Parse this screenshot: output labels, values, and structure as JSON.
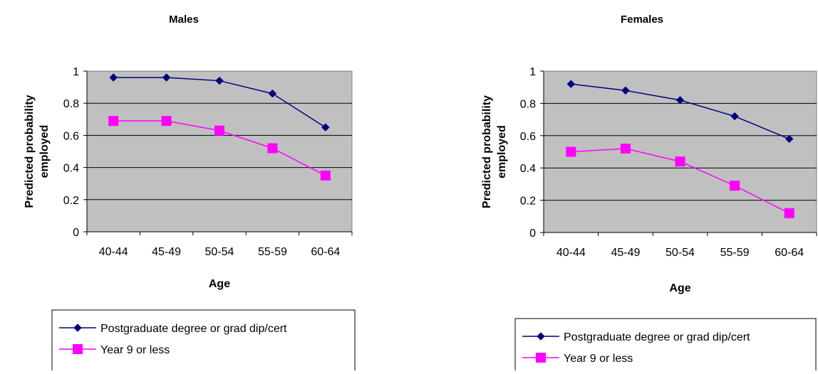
{
  "chart_data": [
    {
      "type": "line",
      "title": "Males",
      "xlabel": "Age",
      "ylabel": "Predicted probability employed",
      "categories": [
        "40-44",
        "45-49",
        "50-54",
        "55-59",
        "60-64"
      ],
      "ylim": [
        0,
        1
      ],
      "yticks": [
        "0",
        "0.2",
        "0.4",
        "0.6",
        "0.8",
        "1"
      ],
      "grid": true,
      "legend_position": "bottom",
      "plot_background": "#c0c0c0",
      "series": [
        {
          "name": "Postgraduate degree or grad dip/cert",
          "color": "#000080",
          "marker": "diamond",
          "values": [
            0.96,
            0.96,
            0.94,
            0.86,
            0.65
          ]
        },
        {
          "name": "Year 9 or less",
          "color": "#ff00ff",
          "marker": "square",
          "values": [
            0.69,
            0.69,
            0.63,
            0.52,
            0.35
          ]
        }
      ]
    },
    {
      "type": "line",
      "title": "Females",
      "xlabel": "Age",
      "ylabel": "Predicted probability employed",
      "categories": [
        "40-44",
        "45-49",
        "50-54",
        "55-59",
        "60-64"
      ],
      "ylim": [
        0,
        1
      ],
      "yticks": [
        "0",
        "0.2",
        "0.4",
        "0.6",
        "0.8",
        "1"
      ],
      "grid": true,
      "legend_position": "bottom",
      "plot_background": "#c0c0c0",
      "series": [
        {
          "name": "Postgraduate degree or grad dip/cert",
          "color": "#000080",
          "marker": "diamond",
          "values": [
            0.92,
            0.88,
            0.82,
            0.72,
            0.58
          ]
        },
        {
          "name": "Year 9 or less",
          "color": "#ff00ff",
          "marker": "square",
          "values": [
            0.5,
            0.52,
            0.44,
            0.29,
            0.12
          ]
        }
      ]
    }
  ]
}
